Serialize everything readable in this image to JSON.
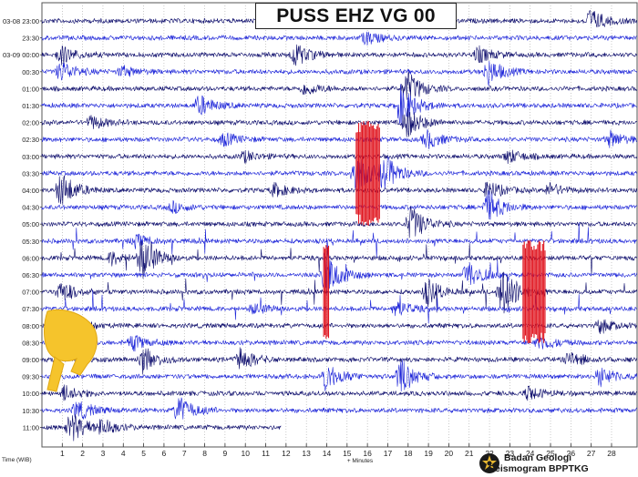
{
  "header": {
    "title": "PUSS EHZ VG 00"
  },
  "credit": {
    "line1": "Badan Geologi",
    "line2": "Seismogram BPPTKG"
  },
  "colors": {
    "trace_blue": "#1a22d8",
    "trace_dark": "#0a0a6a",
    "spike_red": "#e0141e",
    "hand_yellow": "#f5c42c",
    "grid": "#a8a8a8",
    "label": "#222222"
  },
  "chart_data": {
    "type": "seismogram",
    "title": "PUSS EHZ VG 00",
    "xlabel": "+ Minutes",
    "ylabel": "Time (WIB)",
    "xlim": [
      0,
      28
    ],
    "xticks": [
      "1",
      "2",
      "3",
      "4",
      "5",
      "6",
      "7",
      "8",
      "9",
      "10",
      "11",
      "12",
      "13",
      "14",
      "15",
      "16",
      "17",
      "18",
      "19",
      "20",
      "21",
      "22",
      "23",
      "24",
      "25",
      "26",
      "27",
      "28"
    ],
    "rows": [
      "03-08 23:00",
      "23:30",
      "03-09 00:00",
      "00:30",
      "01:00",
      "01:30",
      "02:00",
      "02:30",
      "03:00",
      "03:30",
      "04:00",
      "04:30",
      "05:00",
      "05:30",
      "06:00",
      "06:30",
      "07:00",
      "07:30",
      "08:00",
      "08:30",
      "09:00",
      "09:30",
      "10:00",
      "10:30",
      "11:00"
    ],
    "trace_length_minutes": [
      30,
      30,
      30,
      30,
      30,
      30,
      30,
      30,
      30,
      30,
      30,
      30,
      30,
      30,
      30,
      30,
      30,
      30,
      30,
      30,
      30,
      30,
      30,
      30,
      11.3
    ],
    "events": [
      {
        "row": 0,
        "minute": 26.5,
        "amplitude": 0.9
      },
      {
        "row": 1,
        "minute": 15.5,
        "amplitude": 0.5
      },
      {
        "row": 2,
        "minute": 0.5,
        "amplitude": 0.7
      },
      {
        "row": 2,
        "minute": 12.0,
        "amplitude": 0.9
      },
      {
        "row": 2,
        "minute": 21.0,
        "amplitude": 0.6
      },
      {
        "row": 3,
        "minute": 21.5,
        "amplitude": 1.0
      },
      {
        "row": 3,
        "minute": 0.5,
        "amplitude": 0.8
      },
      {
        "row": 3,
        "minute": 3.5,
        "amplitude": 0.4
      },
      {
        "row": 4,
        "minute": 12.5,
        "amplitude": 0.5
      },
      {
        "row": 4,
        "minute": 17.5,
        "amplitude": 1.3
      },
      {
        "row": 5,
        "minute": 7.3,
        "amplitude": 0.8
      },
      {
        "row": 5,
        "minute": 17.2,
        "amplitude": 1.6
      },
      {
        "row": 6,
        "minute": 2.0,
        "amplitude": 0.5
      },
      {
        "row": 6,
        "minute": 17.5,
        "amplitude": 1.2
      },
      {
        "row": 7,
        "minute": 8.5,
        "amplitude": 0.5
      },
      {
        "row": 7,
        "minute": 18.5,
        "amplitude": 0.7
      },
      {
        "row": 7,
        "minute": 27.5,
        "amplitude": 0.6
      },
      {
        "row": 8,
        "minute": 9.5,
        "amplitude": 0.4
      },
      {
        "row": 8,
        "minute": 22.5,
        "amplitude": 0.5
      },
      {
        "row": 9,
        "minute": 15.0,
        "amplitude": 1.7
      },
      {
        "row": 9,
        "minute": 16.4,
        "amplitude": 1.3
      },
      {
        "row": 10,
        "minute": 0.5,
        "amplitude": 1.4
      },
      {
        "row": 10,
        "minute": 11.0,
        "amplitude": 0.5
      },
      {
        "row": 10,
        "minute": 21.5,
        "amplitude": 0.7
      },
      {
        "row": 10,
        "minute": 24.5,
        "amplitude": 0.5
      },
      {
        "row": 11,
        "minute": 6.0,
        "amplitude": 0.4
      },
      {
        "row": 11,
        "minute": 21.5,
        "amplitude": 1.2
      },
      {
        "row": 12,
        "minute": 17.7,
        "amplitude": 1.4
      },
      {
        "row": 13,
        "minute": 4.2,
        "amplitude": 0.5
      },
      {
        "row": 14,
        "minute": 4.5,
        "amplitude": 1.6
      },
      {
        "row": 14,
        "minute": 3.0,
        "amplitude": 0.5
      },
      {
        "row": 15,
        "minute": 13.5,
        "amplitude": 1.9
      },
      {
        "row": 15,
        "minute": 20.5,
        "amplitude": 1.1
      },
      {
        "row": 16,
        "minute": 18.5,
        "amplitude": 1.0
      },
      {
        "row": 16,
        "minute": 22.2,
        "amplitude": 2.0
      },
      {
        "row": 16,
        "minute": 0.5,
        "amplitude": 0.8
      },
      {
        "row": 17,
        "minute": 10.0,
        "amplitude": 0.4
      },
      {
        "row": 17,
        "minute": 17.0,
        "amplitude": 0.6
      },
      {
        "row": 18,
        "minute": 1.0,
        "amplitude": 0.6
      },
      {
        "row": 18,
        "minute": 27.0,
        "amplitude": 0.5
      },
      {
        "row": 19,
        "minute": 4.0,
        "amplitude": 0.6
      },
      {
        "row": 19,
        "minute": 24.0,
        "amplitude": 0.6
      },
      {
        "row": 20,
        "minute": 4.5,
        "amplitude": 1.0
      },
      {
        "row": 20,
        "minute": 9.3,
        "amplitude": 0.9
      },
      {
        "row": 20,
        "minute": 25.5,
        "amplitude": 0.6
      },
      {
        "row": 21,
        "minute": 13.5,
        "amplitude": 1.1
      },
      {
        "row": 21,
        "minute": 17.2,
        "amplitude": 1.3
      },
      {
        "row": 21,
        "minute": 27.0,
        "amplitude": 0.7
      },
      {
        "row": 22,
        "minute": 0.7,
        "amplitude": 0.6
      },
      {
        "row": 22,
        "minute": 23.5,
        "amplitude": 0.5
      },
      {
        "row": 23,
        "minute": 6.3,
        "amplitude": 1.1
      },
      {
        "row": 23,
        "minute": 1.3,
        "amplitude": 0.8
      },
      {
        "row": 24,
        "minute": 1.0,
        "amplitude": 1.2
      },
      {
        "row": 24,
        "minute": 2.5,
        "amplitude": 0.6
      }
    ],
    "clipped_events": [
      {
        "row": 9,
        "minute_start": 15.0,
        "minute_end": 16.2
      },
      {
        "row": 16,
        "minute_start": 13.4,
        "minute_end": 13.7
      },
      {
        "row": 16,
        "minute_start": 23.2,
        "minute_end": 24.3
      }
    ],
    "noisy_rows": [
      13,
      14,
      15,
      16,
      17
    ],
    "grid": true
  }
}
